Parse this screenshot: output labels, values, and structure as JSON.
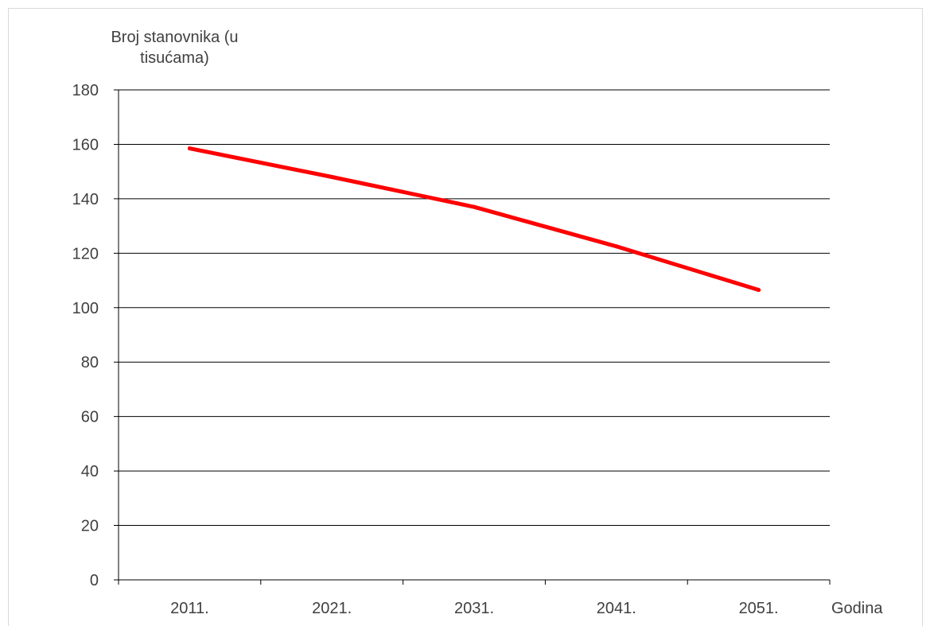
{
  "chart_data": {
    "type": "line",
    "title": "",
    "ylabel": "Broj stanovnika (u tisućama)",
    "xlabel": "Godina",
    "categories": [
      "2011.",
      "2021.",
      "2031.",
      "2041.",
      "2051."
    ],
    "series": [
      {
        "values": [
          158.5,
          148,
          137,
          122.5,
          106.5
        ],
        "color": "#ff0000"
      }
    ],
    "ylim": [
      0,
      180
    ],
    "yticks": [
      0,
      20,
      40,
      60,
      80,
      100,
      120,
      140,
      160,
      180
    ],
    "grid": "horizontal",
    "legend": "none"
  }
}
